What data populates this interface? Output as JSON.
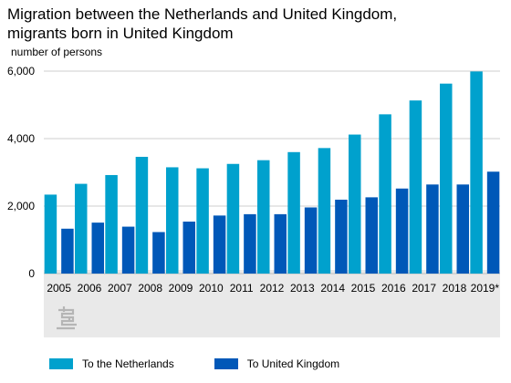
{
  "chart_data": {
    "type": "bar",
    "title": "Migration between the Netherlands and United Kingdom, migrants born in United Kingdom",
    "title_lines": [
      "Migration between the Netherlands and United Kingdom,",
      "migrants born in United Kingdom"
    ],
    "ylabel": "number of persons",
    "xlabel": "",
    "ylim": [
      0,
      6000
    ],
    "yticks": [
      0,
      2000,
      4000,
      6000
    ],
    "ytick_labels": [
      "0",
      "2,000",
      "4,000",
      "6,000"
    ],
    "grid": true,
    "legend_position": "bottom",
    "categories": [
      "2005",
      "2006",
      "2007",
      "2008",
      "2009",
      "2010",
      "2011",
      "2012",
      "2013",
      "2014",
      "2015",
      "2016",
      "2017",
      "2018",
      "2019*"
    ],
    "series": [
      {
        "name": "To the Netherlands",
        "color": "#00a1cd",
        "values": [
          2340,
          2660,
          2920,
          3460,
          3150,
          3120,
          3250,
          3360,
          3600,
          3720,
          4120,
          4720,
          5130,
          5630,
          5990
        ]
      },
      {
        "name": "To United Kingdom",
        "color": "#0058b8",
        "values": [
          1330,
          1510,
          1390,
          1230,
          1540,
          1720,
          1760,
          1760,
          1960,
          2190,
          2260,
          2520,
          2640,
          2640,
          3020
        ]
      }
    ]
  },
  "logo": {
    "icon": "cbs-logo-icon",
    "color": "#b5b5b5"
  },
  "colors": {
    "plot_background": "#e9e9e9",
    "gridline": "#cfcfcf"
  }
}
